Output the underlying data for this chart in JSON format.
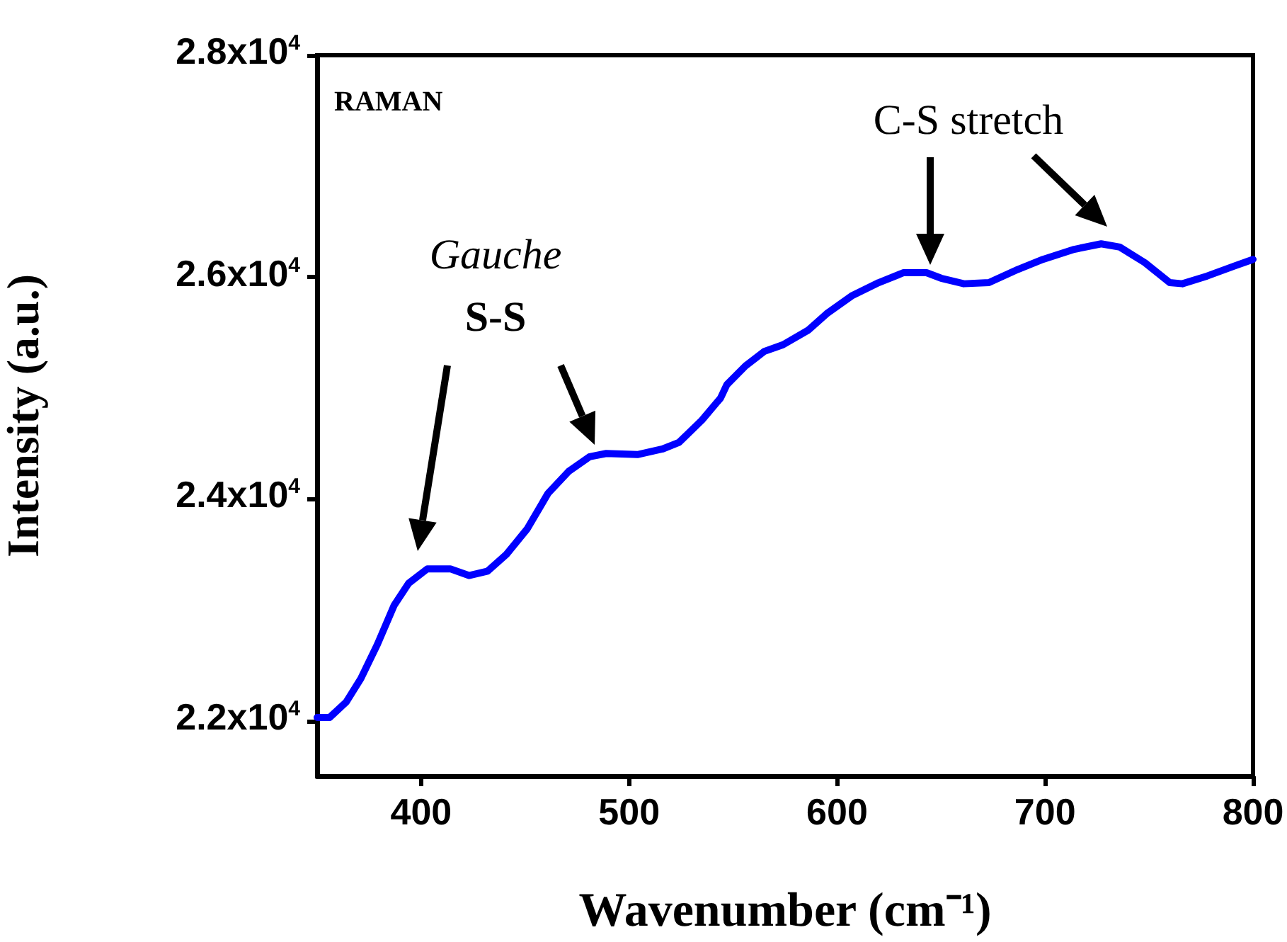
{
  "chart_data": {
    "type": "line",
    "xlabel": "Wavenumber (cm⁻¹)",
    "ylabel": "Intensity (a.u.)",
    "annotations": [
      "RAMAN",
      "Gauche",
      "S-S",
      "C-S stretch"
    ],
    "x": [
      350,
      356,
      364,
      371,
      379,
      387,
      394,
      403,
      414,
      423,
      432,
      441,
      451,
      461,
      471,
      481,
      489,
      504,
      516,
      524,
      535,
      544,
      547,
      556,
      565,
      574,
      586,
      595,
      607,
      620,
      632,
      643,
      650,
      661,
      673,
      687,
      699,
      714,
      727,
      736,
      748,
      760,
      766,
      778,
      791,
      800
    ],
    "series": [
      {
        "color": "#0000ff",
        "values": [
          22030,
          22030,
          22170,
          22380,
          22690,
          23040,
          23240,
          23370,
          23370,
          23310,
          23350,
          23500,
          23730,
          24050,
          24250,
          24380,
          24410,
          24400,
          24450,
          24510,
          24710,
          24910,
          25030,
          25200,
          25330,
          25390,
          25520,
          25670,
          25830,
          25950,
          26040,
          26040,
          25990,
          25940,
          25950,
          26070,
          26160,
          26250,
          26300,
          26270,
          26130,
          25950,
          25940,
          26010,
          26100,
          26160
        ]
      }
    ],
    "xlim": [
      350,
      800
    ],
    "xticks": [
      400,
      500,
      600,
      700,
      800
    ],
    "ylim": [
      21500,
      28000
    ],
    "yticks": [
      {
        "value": 22000,
        "label": "2.2x10$^{4}$"
      },
      {
        "value": 24000,
        "label": "2.4x10$^{4}$"
      },
      {
        "value": 26000,
        "label": "2.6x10$^{4}$"
      },
      {
        "value": 28000,
        "label": "2.8x10$^{4}$"
      }
    ],
    "grid": false,
    "marker": "none",
    "line_style": "solid"
  }
}
